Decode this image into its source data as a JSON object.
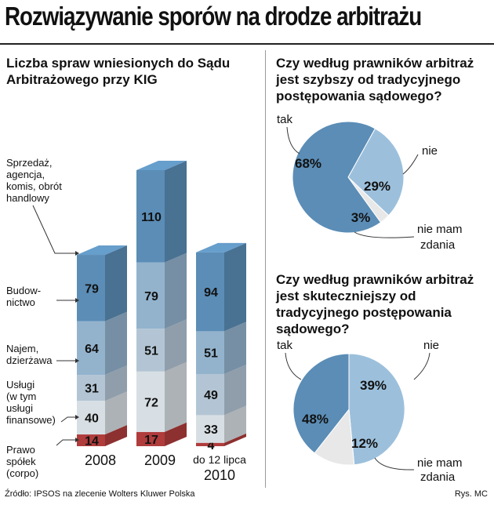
{
  "header": {
    "title": "Rozwiązywanie sporów na drodze arbitrażu",
    "source": "Źródło: IPSOS na zlecenie Wolters Kluwer Polska",
    "credit": "Rys. MC"
  },
  "colors": {
    "sprzedaz": "#5b8db6",
    "budownictwo": "#93b3cd",
    "najem": "#b3c5d4",
    "uslugi": "#d8dfe4",
    "prawo": "#b03c3c",
    "pie_dark": "#5b8db6",
    "pie_light": "#9cc0dc",
    "pie_grey": "#e8e8e8"
  },
  "chart_data": [
    {
      "type": "bar",
      "stacked": true,
      "title": "Liczba spraw wniesionych do Sądu Arbitrażowego przy KIG",
      "categories": [
        "2008",
        "2009",
        "do 12 lipca 2010"
      ],
      "category_lines": [
        [
          "2008"
        ],
        [
          "2009"
        ],
        [
          "do 12 lipca",
          "2010"
        ]
      ],
      "series": [
        {
          "key": "prawo",
          "name": "Prawo spółek (corpo)",
          "label_lines": [
            "Prawo",
            "spółek",
            "(corpo)"
          ],
          "values": [
            14,
            17,
            4
          ]
        },
        {
          "key": "uslugi",
          "name": "Usługi (w tym usługi finansowe)",
          "label_lines": [
            "Usługi",
            "(w tym",
            "usługi",
            "finansowe)"
          ],
          "values": [
            40,
            72,
            33
          ]
        },
        {
          "key": "najem",
          "name": "Najem, dzierżawa",
          "label_lines": [
            "Najem,",
            "dzierżawa"
          ],
          "values": [
            31,
            51,
            49
          ]
        },
        {
          "key": "budownictwo",
          "name": "Budownictwo",
          "label_lines": [
            "Budow-",
            "nictwo"
          ],
          "values": [
            64,
            79,
            51
          ]
        },
        {
          "key": "sprzedaz",
          "name": "Sprzedaż, agencja, komis, obrót handlowy",
          "label_lines": [
            "Sprzedaż,",
            "agencja,",
            "komis, obrót",
            "handlowy"
          ],
          "values": [
            79,
            110,
            94
          ]
        }
      ]
    },
    {
      "type": "pie",
      "title": "Czy według prawników arbitraż jest szybszy od tradycyjnego postępowania sądowego?",
      "slices": [
        {
          "label": "tak",
          "value": 68,
          "text": "68%",
          "color_key": "pie_dark"
        },
        {
          "label": "nie",
          "value": 29,
          "text": "29%",
          "color_key": "pie_light"
        },
        {
          "label": "nie mam zdania",
          "value": 3,
          "text": "3%",
          "color_key": "pie_grey"
        }
      ]
    },
    {
      "type": "pie",
      "title": "Czy według prawników arbitraż jest skuteczniejszy od tradycyjnego postępowania sądowego?",
      "slices": [
        {
          "label": "tak",
          "value": 39,
          "text": "39%",
          "color_key": "pie_dark"
        },
        {
          "label": "nie",
          "value": 48,
          "text": "48%",
          "color_key": "pie_light"
        },
        {
          "label": "nie mam zdania",
          "value": 12,
          "text": "12%",
          "color_key": "pie_grey"
        }
      ]
    }
  ],
  "pie_labels": {
    "q1": {
      "tak": "tak",
      "nie": "nie",
      "nmz_1": "nie mam",
      "nmz_2": "zdania"
    },
    "q2": {
      "tak": "tak",
      "nie": "nie",
      "nmz_1": "nie mam",
      "nmz_2": "zdania"
    }
  }
}
